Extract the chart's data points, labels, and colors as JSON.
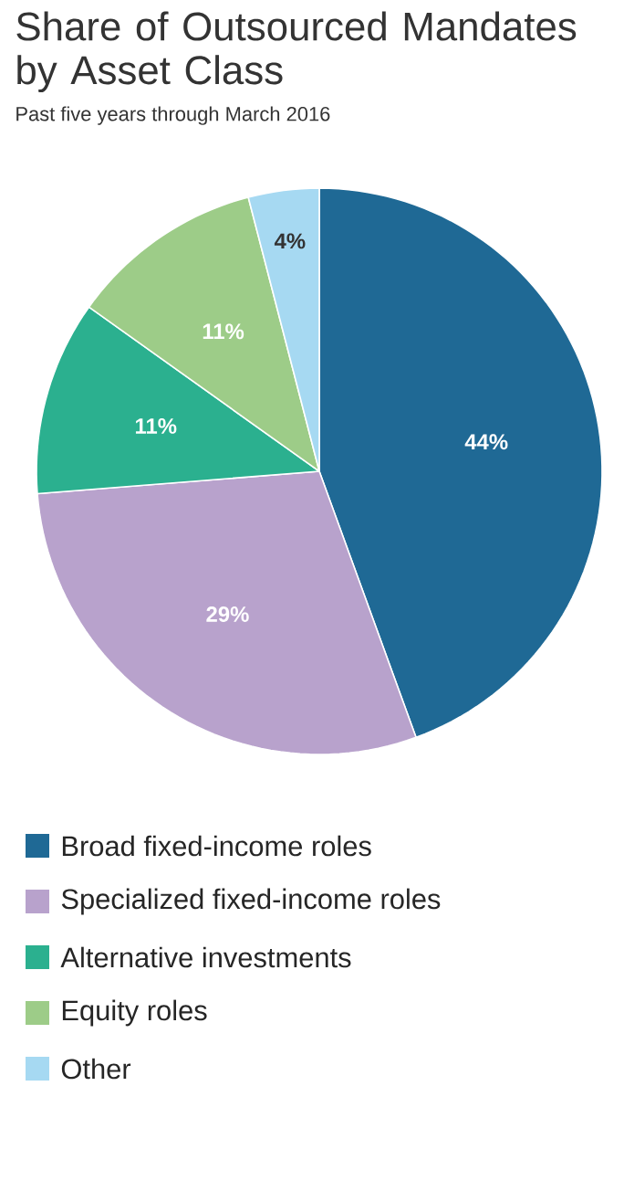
{
  "chart_data": {
    "type": "pie",
    "title": "Share of Outsourced Mandates by Asset Class",
    "subtitle": "Past five years through March 2016",
    "categories": [
      "Broad fixed-income roles",
      "Specialized fixed-income roles",
      "Alternative investments",
      "Equity roles",
      "Other"
    ],
    "values": [
      44,
      29,
      11,
      11,
      4
    ],
    "colors": [
      "#1f6995",
      "#b8a2cc",
      "#2bb08f",
      "#9dcc88",
      "#a6d9f2"
    ],
    "value_labels": [
      "44%",
      "29%",
      "11%",
      "11%",
      "4%"
    ],
    "legend": "bottom"
  }
}
